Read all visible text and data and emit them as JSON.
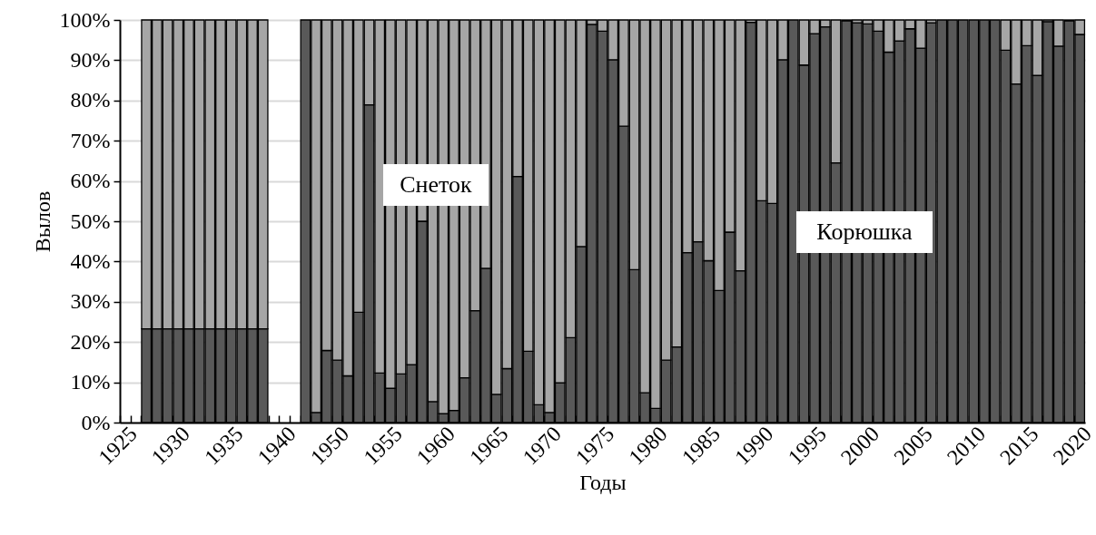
{
  "chart_data": {
    "type": "bar",
    "stacked": true,
    "xlabel": "Годы",
    "ylabel": "Вылов",
    "categories": [
      "1925",
      null,
      null,
      null,
      null,
      "1930",
      null,
      null,
      null,
      null,
      "1935",
      null,
      null,
      null,
      null,
      "1940",
      null,
      null,
      null,
      null,
      "1950",
      null,
      null,
      null,
      null,
      "1955",
      null,
      null,
      null,
      null,
      "1960",
      null,
      null,
      null,
      null,
      "1965",
      null,
      null,
      null,
      null,
      "1970",
      null,
      null,
      null,
      null,
      "1975",
      null,
      null,
      null,
      null,
      "1980",
      null,
      null,
      null,
      null,
      "1985",
      null,
      null,
      null,
      null,
      "1990",
      null,
      null,
      null,
      null,
      "1995",
      null,
      null,
      null,
      null,
      "2000",
      null,
      null,
      null,
      null,
      "2005",
      null,
      null,
      null,
      null,
      "2010",
      null,
      null,
      null,
      null,
      "2015",
      null,
      null,
      null,
      null,
      "2020"
    ],
    "series": [
      {
        "name": "Корюшка",
        "color": "#595959",
        "values": [
          null,
          null,
          23.3,
          23.3,
          23.3,
          23.3,
          23.3,
          23.3,
          23.3,
          23.3,
          23.3,
          23.3,
          23.3,
          23.3,
          null,
          null,
          null,
          100,
          2.5,
          17.9,
          15.5,
          11.6,
          27.4,
          78.9,
          12.3,
          8.5,
          12.1,
          14.4,
          50,
          5.2,
          2.2,
          3.0,
          11.1,
          27.8,
          38.3,
          7.0,
          13.4,
          61.1,
          17.7,
          4.4,
          2.5,
          9.9,
          21.1,
          43.7,
          98.9,
          97.2,
          90.1,
          73.6,
          38.0,
          7.4,
          3.5,
          15.5,
          18.8,
          42.2,
          44.9,
          40.2,
          32.8,
          47.3,
          37.7,
          99.4,
          55.1,
          54.4,
          90.1,
          100,
          88.8,
          96.6,
          98.3,
          64.5,
          99.8,
          99.3,
          99.0,
          97.2,
          92.0,
          94.8,
          97.8,
          93.0,
          99.3,
          100,
          100,
          100,
          100,
          100,
          100,
          92.5,
          84.1,
          93.6,
          86.2,
          99.6,
          93.5,
          99.8,
          96.4
        ]
      },
      {
        "name": "Снеток",
        "color": "#a6a6a6",
        "values": [
          null,
          null,
          76.7,
          76.7,
          76.7,
          76.7,
          76.7,
          76.7,
          76.7,
          76.7,
          76.7,
          76.7,
          76.7,
          76.7,
          null,
          null,
          null,
          null,
          97.5,
          82.1,
          84.5,
          88.4,
          72.6,
          21.1,
          87.7,
          91.5,
          87.9,
          85.6,
          50,
          94.8,
          97.8,
          97.0,
          88.9,
          72.2,
          61.7,
          93.0,
          86.6,
          38.9,
          82.3,
          95.6,
          97.5,
          90.1,
          78.9,
          56.3,
          1.1,
          2.8,
          9.9,
          26.4,
          62.0,
          92.6,
          96.5,
          84.5,
          81.2,
          57.8,
          55.1,
          59.8,
          67.2,
          52.7,
          62.3,
          0.6,
          44.9,
          45.6,
          9.9,
          null,
          11.2,
          3.4,
          1.7,
          35.5,
          0.2,
          0.7,
          1.0,
          2.8,
          8.0,
          5.2,
          2.2,
          7.0,
          0.7,
          null,
          null,
          null,
          null,
          null,
          null,
          7.5,
          15.9,
          6.4,
          13.8,
          0.4,
          6.5,
          0.2,
          3.6
        ]
      }
    ],
    "ylim": [
      0,
      100
    ],
    "yticks": [
      {
        "value": 0,
        "label": "0%"
      },
      {
        "value": 10,
        "label": "10%"
      },
      {
        "value": 20,
        "label": "20%"
      },
      {
        "value": 30,
        "label": "30%"
      },
      {
        "value": 40,
        "label": "40%"
      },
      {
        "value": 50,
        "label": "50%"
      },
      {
        "value": 60,
        "label": "60%"
      },
      {
        "value": 70,
        "label": "70%"
      },
      {
        "value": 80,
        "label": "80%"
      },
      {
        "value": 90,
        "label": "90%"
      },
      {
        "value": 100,
        "label": "100%"
      }
    ],
    "grid": "y"
  }
}
